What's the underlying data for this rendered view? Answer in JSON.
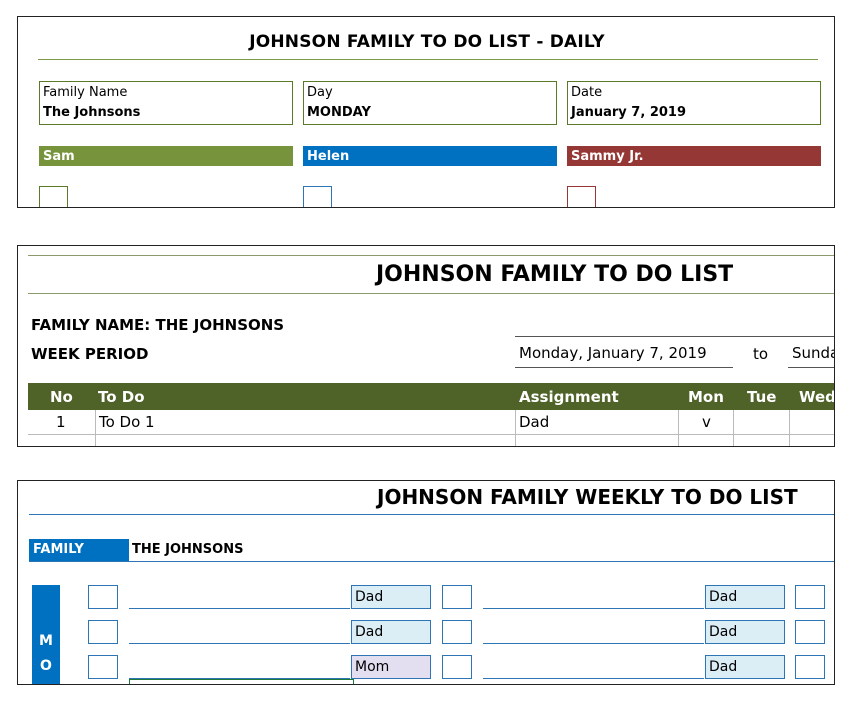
{
  "daily": {
    "title": "JOHNSON FAMILY TO DO LIST - DAILY",
    "family_name_label": "Family Name",
    "family_name_value": "The Johnsons",
    "day_label": "Day",
    "day_value": "MONDAY",
    "date_label": "Date",
    "date_value": "January 7, 2019",
    "members": [
      {
        "name": "Sam",
        "color": "#77933c"
      },
      {
        "name": "Helen",
        "color": "#0070c0"
      },
      {
        "name": "Sammy Jr.",
        "color": "#953735"
      }
    ]
  },
  "weekly_list": {
    "title": "JOHNSON FAMILY TO DO LIST",
    "family_name_line": "FAMILY NAME: THE JOHNSONS",
    "week_period_label": "WEEK PERIOD",
    "week_start": "Monday, January 7, 2019",
    "to_label": "to",
    "week_end": "Sunda",
    "header_color": "#4f6228",
    "columns": [
      "No",
      "To Do",
      "Assignment",
      "Mon",
      "Tue",
      "Wed"
    ],
    "rows": [
      {
        "no": "1",
        "todo": "To Do 1",
        "assignment": "Dad",
        "mon": "v"
      }
    ]
  },
  "weekly_grid": {
    "title": "JOHNSON FAMILY WEEKLY TO DO LIST",
    "family_label": "FAMILY",
    "family_value": "THE JOHNSONS",
    "day_letters": [
      "M",
      "O"
    ],
    "left_assignments": [
      "Dad",
      "Dad",
      "Mom"
    ],
    "right_assignments": [
      "Dad",
      "Dad",
      "Dad"
    ]
  }
}
